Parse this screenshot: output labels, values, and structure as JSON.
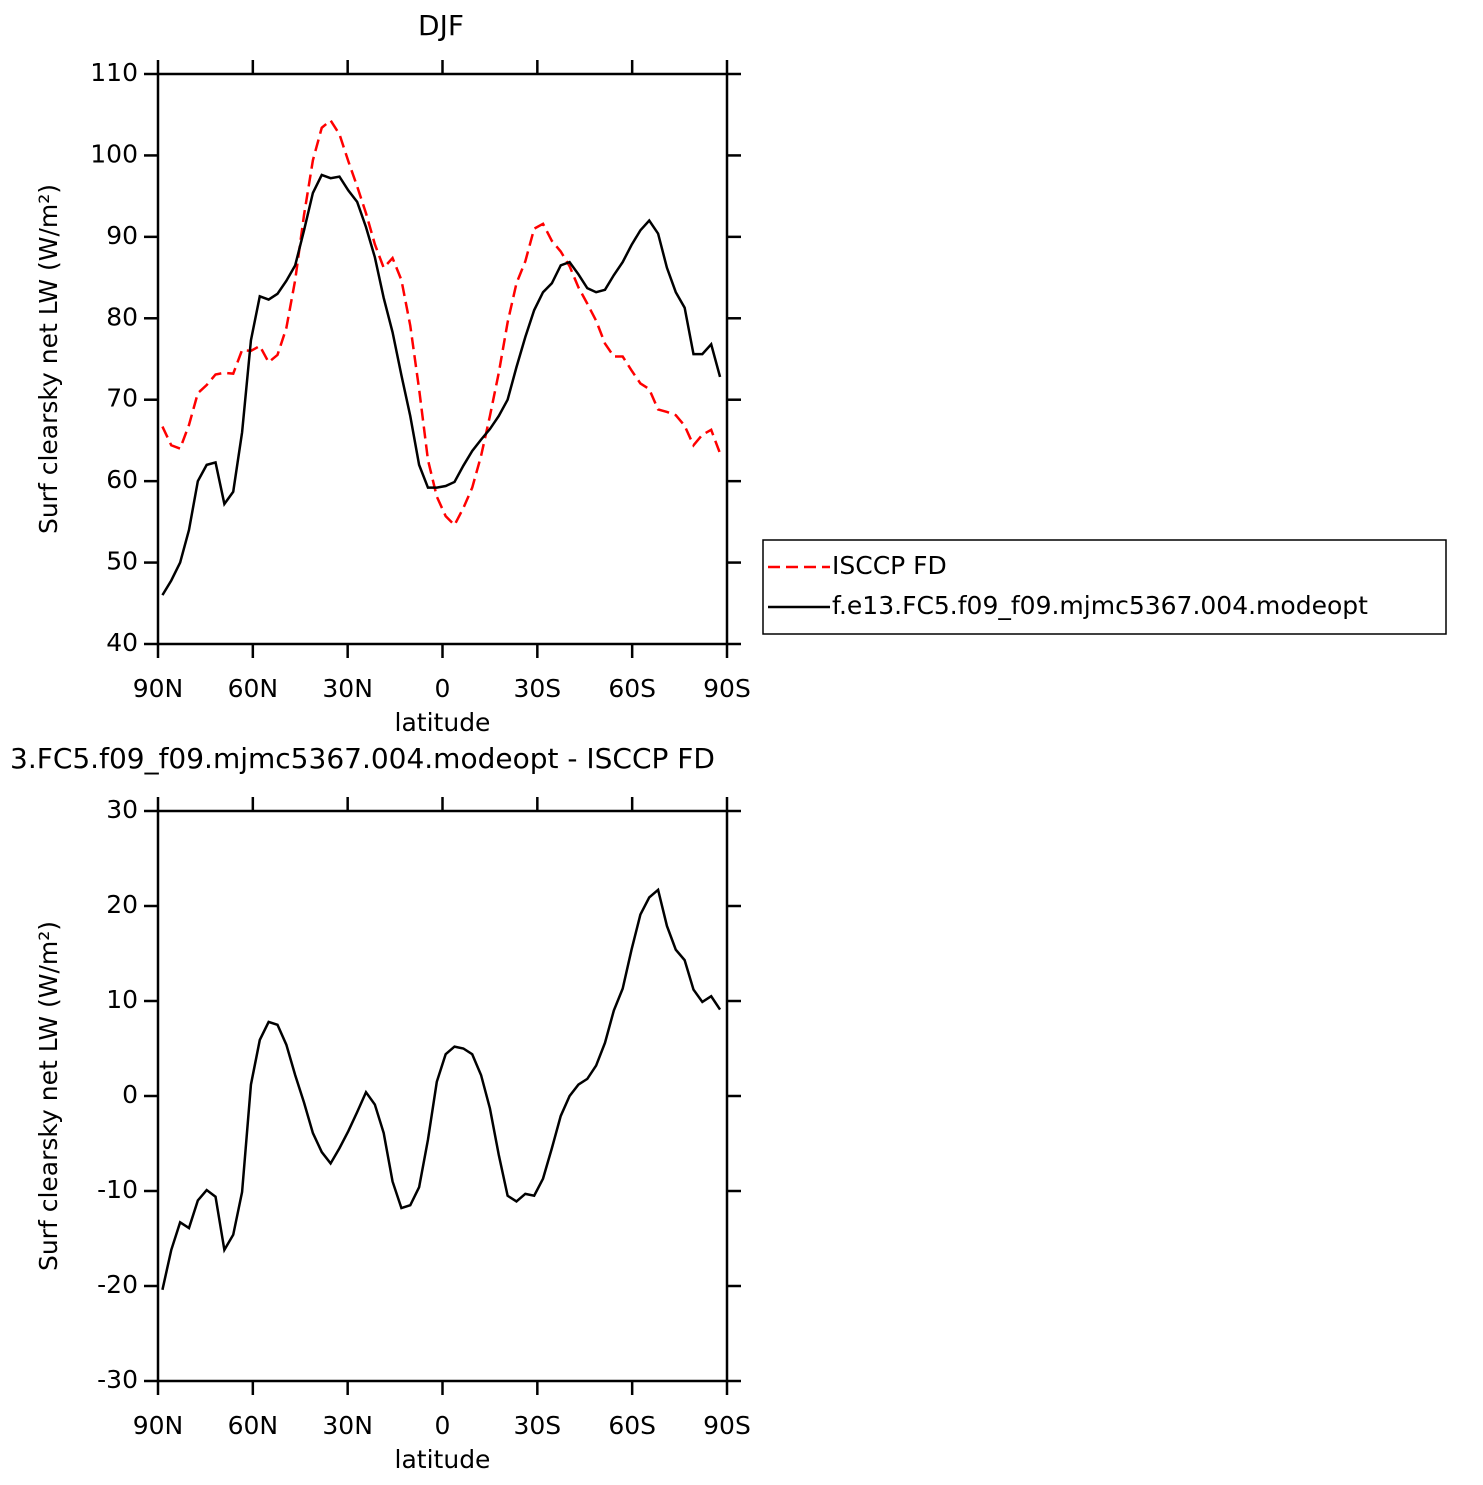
{
  "chart_data": [
    {
      "type": "line",
      "title": "DJF",
      "xlabel": "latitude",
      "ylabel": "Surf clearsky net LW (W/m²)",
      "x": [
        88.6,
        85.8,
        83,
        80.2,
        77.4,
        74.6,
        71.8,
        69,
        66.2,
        63.4,
        60.6,
        57.8,
        55,
        52.2,
        49.4,
        46.6,
        43.8,
        41,
        38.2,
        35.4,
        32.6,
        29.8,
        27,
        24.2,
        21.4,
        18.6,
        15.8,
        13,
        10.2,
        7.4,
        4.6,
        1.8,
        -1,
        -3.8,
        -6.6,
        -9.4,
        -12.2,
        -15,
        -17.8,
        -20.6,
        -23.4,
        -26.2,
        -29,
        -31.8,
        -34.6,
        -37.4,
        -40.2,
        -43,
        -45.8,
        -48.6,
        -51.4,
        -54.2,
        -57,
        -59.8,
        -62.6,
        -65.4,
        -68.2,
        -71,
        -73.8,
        -76.6,
        -79.4,
        -82.2,
        -85,
        -87.8
      ],
      "series": [
        {
          "name": "ISCCP FD",
          "color": "#ff0000",
          "dash": "dashed",
          "values": [
            66.7,
            64.4,
            64,
            66.9,
            70.8,
            71.8,
            73.1,
            73.3,
            73.2,
            76.1,
            76,
            76.6,
            74.6,
            75.5,
            78.8,
            84.7,
            92.7,
            99.4,
            103.4,
            104.3,
            102.6,
            99.3,
            96.2,
            92.9,
            89.1,
            86.2,
            87.4,
            84.7,
            79.1,
            71.3,
            62.6,
            58.1,
            55.7,
            54.6,
            56.7,
            59.2,
            63.1,
            68,
            73.3,
            79.5,
            84.3,
            87,
            91,
            91.6,
            89.5,
            88.2,
            86.4,
            83.8,
            81.8,
            79.7,
            76.9,
            75.3,
            75.3,
            73.6,
            72,
            71.3,
            68.8,
            68.5,
            68.1,
            66.8,
            64.4,
            65.7,
            66.3,
            63.4
          ]
        },
        {
          "name": "f.e13.FC5.f09_f09.mjmc5367.004.modeopt",
          "color": "#000000",
          "dash": "solid",
          "values": [
            46,
            47.8,
            50,
            54,
            60,
            62,
            62.3,
            57.2,
            58.7,
            66,
            77.3,
            82.7,
            82.3,
            83,
            84.6,
            86.5,
            90.8,
            95.4,
            97.6,
            97.2,
            97.4,
            95.7,
            94.3,
            91.2,
            87.5,
            82.5,
            78.3,
            73,
            68,
            62,
            59.2,
            59.2,
            59.4,
            59.9,
            61.9,
            63.7,
            65.1,
            66.4,
            68,
            70,
            74,
            77.7,
            81,
            83.2,
            84.3,
            86.5,
            86.9,
            85.4,
            83.7,
            83.2,
            83.5,
            85.3,
            86.9,
            89,
            90.8,
            92,
            90.4,
            86.2,
            83.2,
            81.3,
            75.6,
            75.6,
            76.8,
            72.8
          ]
        }
      ],
      "xlim": [
        90,
        -90
      ],
      "xticks": [
        {
          "value": 90,
          "label": "90N"
        },
        {
          "value": 60,
          "label": "60N"
        },
        {
          "value": 30,
          "label": "30N"
        },
        0,
        {
          "value": -30,
          "label": "30S"
        },
        {
          "value": -60,
          "label": "60S"
        },
        {
          "value": -90,
          "label": "90S"
        }
      ],
      "ylim": [
        40,
        110
      ],
      "yticks": [
        40,
        50,
        60,
        70,
        80,
        90,
        100,
        110
      ],
      "legend": "right"
    },
    {
      "type": "line",
      "title": "3.FC5.f09_f09.mjmc5367.004.modeopt - ISCCP FD",
      "xlabel": "latitude",
      "ylabel": "Surf clearsky net LW (W/m²)",
      "x": [
        88.6,
        85.8,
        83,
        80.2,
        77.4,
        74.6,
        71.8,
        69,
        66.2,
        63.4,
        60.6,
        57.8,
        55,
        52.2,
        49.4,
        46.6,
        43.8,
        41,
        38.2,
        35.4,
        32.6,
        29.8,
        27,
        24.2,
        21.4,
        18.6,
        15.8,
        13,
        10.2,
        7.4,
        4.6,
        1.8,
        -1,
        -3.8,
        -6.6,
        -9.4,
        -12.2,
        -15,
        -17.8,
        -20.6,
        -23.4,
        -26.2,
        -29,
        -31.8,
        -34.6,
        -37.4,
        -40.2,
        -43,
        -45.8,
        -48.6,
        -51.4,
        -54.2,
        -57,
        -59.8,
        -62.6,
        -65.4,
        -68.2,
        -71,
        -73.8,
        -76.6,
        -79.4,
        -82.2,
        -85,
        -87.8
      ],
      "series": [
        {
          "color": "#000000",
          "dash": "solid",
          "values": [
            -20.4,
            -16.2,
            -13.3,
            -13.9,
            -11,
            -9.9,
            -10.6,
            -16.2,
            -14.6,
            -10.1,
            1.2,
            5.9,
            7.8,
            7.5,
            5.4,
            2.2,
            -0.7,
            -3.9,
            -5.9,
            -7.1,
            -5.5,
            -3.7,
            -1.7,
            0.4,
            -0.9,
            -3.9,
            -9,
            -11.8,
            -11.5,
            -9.6,
            -4.6,
            1.5,
            4.4,
            5.2,
            5,
            4.4,
            2.2,
            -1.3,
            -6.2,
            -10.5,
            -11.1,
            -10.3,
            -10.5,
            -8.7,
            -5.5,
            -2.1,
            0,
            1.2,
            1.8,
            3.2,
            5.6,
            9,
            11.3,
            15.4,
            19.1,
            20.9,
            21.7,
            17.9,
            15.4,
            14.3,
            11.2,
            9.9,
            10.5,
            9.1
          ]
        }
      ],
      "xlim": [
        90,
        -90
      ],
      "xticks": [
        {
          "value": 90,
          "label": "90N"
        },
        {
          "value": 60,
          "label": "60N"
        },
        {
          "value": 30,
          "label": "30N"
        },
        0,
        {
          "value": -30,
          "label": "30S"
        },
        {
          "value": -60,
          "label": "60S"
        },
        {
          "value": -90,
          "label": "90S"
        }
      ],
      "ylim": [
        -30,
        30
      ],
      "yticks": [
        -30,
        -20,
        -10,
        0,
        10,
        20,
        30
      ]
    }
  ]
}
